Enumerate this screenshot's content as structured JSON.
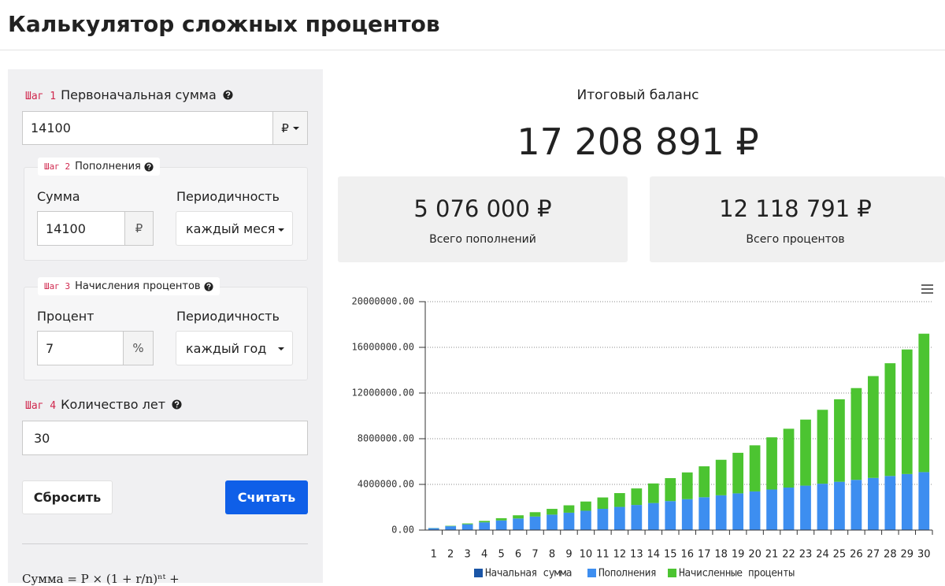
{
  "header": {
    "title": "Калькулятор сложных процентов"
  },
  "form": {
    "step1": {
      "step": "Шаг 1",
      "label": "Первоначальная сумма",
      "value": "14100",
      "currency": "₽"
    },
    "step2": {
      "step": "Шаг 2",
      "label": "Пополнения",
      "amount_label": "Сумма",
      "amount": "14100",
      "unit": "₽",
      "period_label": "Периодичность",
      "period": "каждый месяц"
    },
    "step3": {
      "step": "Шаг 3",
      "label": "Начисления процентов",
      "rate_label": "Процент",
      "rate": "7",
      "unit": "%",
      "period_label": "Периодичность",
      "period": "каждый год"
    },
    "step4": {
      "step": "Шаг 4",
      "label": "Количество лет",
      "value": "30"
    },
    "reset": "Сбросить",
    "submit": "Считать",
    "formula": "Сумма = P × (1 + r/n)ⁿᵗ +"
  },
  "results": {
    "title": "Итоговый баланс",
    "total": "17 208 891 ₽",
    "deposits": "5 076 000 ₽",
    "deposits_label": "Всего пополнений",
    "interest": "12 118 791 ₽",
    "interest_label": "Всего процентов"
  },
  "chart_data": {
    "type": "bar",
    "stacked": true,
    "grid": true,
    "legend": "bottom",
    "categories": [
      "1",
      "2",
      "3",
      "4",
      "5",
      "6",
      "7",
      "8",
      "9",
      "10",
      "11",
      "12",
      "13",
      "14",
      "15",
      "16",
      "17",
      "18",
      "19",
      "20",
      "21",
      "22",
      "23",
      "24",
      "25",
      "26",
      "27",
      "28",
      "29",
      "30"
    ],
    "ylim": [
      0,
      20000000
    ],
    "yticks": [
      {
        "value": 0,
        "label": "0.00"
      },
      {
        "value": 4000000,
        "label": "4000000.00"
      },
      {
        "value": 8000000,
        "label": "8000000.00"
      },
      {
        "value": 12000000,
        "label": "12000000.00"
      },
      {
        "value": 16000000,
        "label": "16000000.00"
      },
      {
        "value": 20000000,
        "label": "20000000.00"
      }
    ],
    "series": [
      {
        "name": "Начальная сумма",
        "color": "#1a55a6",
        "values": [
          14100,
          14100,
          14100,
          14100,
          14100,
          14100,
          14100,
          14100,
          14100,
          14100,
          14100,
          14100,
          14100,
          14100,
          14100,
          14100,
          14100,
          14100,
          14100,
          14100,
          14100,
          14100,
          14100,
          14100,
          14100,
          14100,
          14100,
          14100,
          14100,
          14100
        ]
      },
      {
        "name": "Пополнения",
        "color": "#3d8ef0",
        "values": [
          155100,
          324300,
          493500,
          662700,
          831900,
          1001100,
          1170300,
          1339500,
          1508700,
          1677900,
          1847100,
          2016300,
          2185500,
          2354700,
          2523900,
          2693100,
          2862300,
          3031500,
          3200700,
          3369900,
          3539100,
          3708300,
          3877500,
          4046700,
          4215900,
          4385100,
          4554300,
          4723500,
          4892700,
          5061900
        ]
      },
      {
        "name": "Начисленные проценты",
        "color": "#4cc431",
        "values": [
          12000,
          36000,
          74000,
          127000,
          195000,
          280000,
          382000,
          504000,
          646000,
          809000,
          996000,
          1208000,
          1447000,
          1714000,
          2011000,
          2342000,
          2707000,
          3110000,
          3552000,
          4038000,
          4569000,
          5150000,
          5783000,
          6472000,
          7221000,
          8034000,
          8916000,
          9872000,
          10907000,
          12119000
        ]
      }
    ]
  }
}
